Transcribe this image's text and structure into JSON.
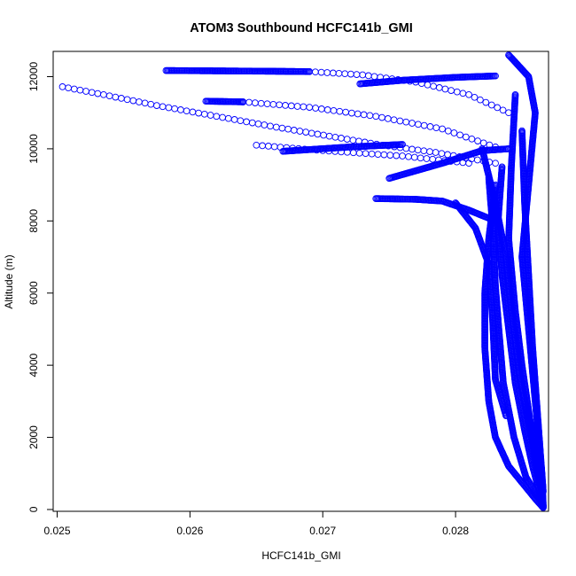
{
  "chart_data": {
    "type": "scatter",
    "title": "ATOM3 Southbound HCFC141b_GMI",
    "xlabel": "HCFC141b_GMI",
    "ylabel": "Altitude (m)",
    "xlim": [
      0.02497,
      0.0287
    ],
    "ylim": [
      -50,
      12700
    ],
    "x_ticks": [
      0.025,
      0.026,
      0.027,
      0.028
    ],
    "x_tick_labels": [
      "0.025",
      "0.026",
      "0.027",
      "0.028"
    ],
    "y_ticks": [
      0,
      2000,
      4000,
      6000,
      8000,
      10000,
      12000
    ],
    "y_tick_labels": [
      "0",
      "2000",
      "4000",
      "6000",
      "8000",
      "10000",
      "12000"
    ],
    "marker": "open-circle",
    "color": "#0000ff",
    "grid": false,
    "legend": "none",
    "series": [
      {
        "name": "",
        "segments": [
          {
            "points": [
              [
                0.02504,
                11720
              ],
              [
                0.02535,
                11500
              ],
              [
                0.02575,
                11200
              ],
              [
                0.0262,
                10900
              ],
              [
                0.02665,
                10600
              ],
              [
                0.02705,
                10350
              ],
              [
                0.02745,
                10100
              ],
              [
                0.02785,
                9900
              ],
              [
                0.0283,
                9600
              ]
            ],
            "density": "sparse"
          },
          {
            "points": [
              [
                0.02582,
                12170
              ],
              [
                0.0262,
                12160
              ],
              [
                0.0266,
                12150
              ],
              [
                0.0269,
                12140
              ]
            ],
            "density": "dense"
          },
          {
            "points": [
              [
                0.0269,
                12140
              ],
              [
                0.0273,
                12050
              ],
              [
                0.0277,
                11850
              ],
              [
                0.0281,
                11500
              ],
              [
                0.0284,
                11000
              ]
            ],
            "density": "sparse"
          },
          {
            "points": [
              [
                0.02612,
                11320
              ],
              [
                0.0264,
                11300
              ]
            ],
            "density": "dense"
          },
          {
            "points": [
              [
                0.0264,
                11300
              ],
              [
                0.0269,
                11150
              ],
              [
                0.0274,
                10900
              ],
              [
                0.0279,
                10550
              ],
              [
                0.0283,
                10050
              ]
            ],
            "density": "sparse"
          },
          {
            "points": [
              [
                0.0265,
                10100
              ],
              [
                0.027,
                9950
              ],
              [
                0.0276,
                9800
              ],
              [
                0.0281,
                9600
              ]
            ],
            "density": "sparse"
          },
          {
            "points": [
              [
                0.0267,
                9930
              ],
              [
                0.0272,
                10050
              ],
              [
                0.0276,
                10120
              ]
            ],
            "density": "dense"
          },
          {
            "points": [
              [
                0.02728,
                11800
              ],
              [
                0.0276,
                11900
              ],
              [
                0.028,
                11980
              ],
              [
                0.0283,
                12020
              ]
            ],
            "density": "dense"
          },
          {
            "points": [
              [
                0.0274,
                8620
              ],
              [
                0.0277,
                8600
              ],
              [
                0.0279,
                8550
              ],
              [
                0.0281,
                8300
              ],
              [
                0.0283,
                8000
              ]
            ],
            "density": "dense"
          },
          {
            "points": [
              [
                0.0275,
                9180
              ],
              [
                0.0279,
                9600
              ],
              [
                0.0282,
                9950
              ],
              [
                0.0284,
                10000
              ]
            ],
            "density": "dense"
          },
          {
            "points": [
              [
                0.0284,
                12600
              ],
              [
                0.02855,
                12000
              ],
              [
                0.0286,
                11000
              ],
              [
                0.02855,
                9000
              ],
              [
                0.0285,
                7000
              ],
              [
                0.02855,
                5000
              ],
              [
                0.0286,
                3000
              ],
              [
                0.02865,
                1000
              ],
              [
                0.02866,
                100
              ]
            ],
            "density": "dense"
          },
          {
            "points": [
              [
                0.0283,
                9000
              ],
              [
                0.02825,
                7500
              ],
              [
                0.02822,
                6000
              ],
              [
                0.02822,
                4500
              ],
              [
                0.02825,
                3000
              ],
              [
                0.0283,
                2000
              ],
              [
                0.0284,
                1200
              ],
              [
                0.0286,
                300
              ],
              [
                0.02866,
                50
              ]
            ],
            "density": "dense"
          },
          {
            "points": [
              [
                0.02835,
                9500
              ],
              [
                0.02832,
                8000
              ],
              [
                0.02835,
                6500
              ],
              [
                0.0284,
                5000
              ],
              [
                0.02845,
                3500
              ],
              [
                0.02852,
                2200
              ],
              [
                0.02858,
                1200
              ],
              [
                0.02866,
                80
              ]
            ],
            "density": "dense"
          },
          {
            "points": [
              [
                0.02845,
                11500
              ],
              [
                0.02842,
                9500
              ],
              [
                0.0284,
                7500
              ],
              [
                0.02845,
                5500
              ],
              [
                0.0285,
                4000
              ],
              [
                0.02856,
                2500
              ],
              [
                0.02862,
                1200
              ],
              [
                0.02866,
                60
              ]
            ],
            "density": "dense"
          },
          {
            "points": [
              [
                0.0282,
                10000
              ],
              [
                0.0283,
                8500
              ],
              [
                0.02838,
                7000
              ],
              [
                0.02842,
                5500
              ],
              [
                0.02848,
                3800
              ],
              [
                0.02855,
                2500
              ],
              [
                0.02863,
                700
              ]
            ],
            "density": "dense"
          },
          {
            "points": [
              [
                0.0285,
                10500
              ],
              [
                0.02852,
                8500
              ],
              [
                0.02855,
                6500
              ],
              [
                0.02858,
                4500
              ],
              [
                0.02862,
                2500
              ],
              [
                0.02866,
                500
              ]
            ],
            "density": "dense"
          },
          {
            "points": [
              [
                0.02825,
                9200
              ],
              [
                0.02828,
                7800
              ],
              [
                0.0283,
                6200
              ],
              [
                0.02833,
                4800
              ],
              [
                0.02836,
                3500
              ],
              [
                0.02844,
                2000
              ],
              [
                0.02853,
                900
              ],
              [
                0.02866,
                100
              ]
            ],
            "density": "dense"
          },
          {
            "points": [
              [
                0.028,
                8500
              ],
              [
                0.02815,
                7800
              ],
              [
                0.02825,
                6800
              ],
              [
                0.02828,
                5200
              ],
              [
                0.0283,
                3600
              ],
              [
                0.02838,
                2600
              ]
            ],
            "density": "dense"
          }
        ]
      }
    ]
  }
}
